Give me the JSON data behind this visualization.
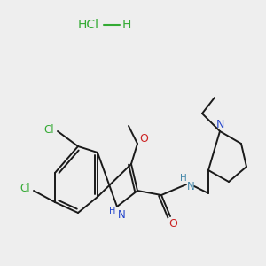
{
  "bg_color": "#eeeeee",
  "hcl_color": "#33aa33",
  "N_color": "#2244cc",
  "O_color": "#cc2222",
  "Cl_color": "#33aa33",
  "NH_color": "#4488aa",
  "bond_color": "#1a1a1a",
  "bond_width": 1.4,
  "font_size": 9,
  "hcl_label": "HCl",
  "h_label": "H",
  "n_label": "N",
  "o_label": "O",
  "cl_label": "Cl",
  "nh_label": "NH",
  "h2_label": "H"
}
